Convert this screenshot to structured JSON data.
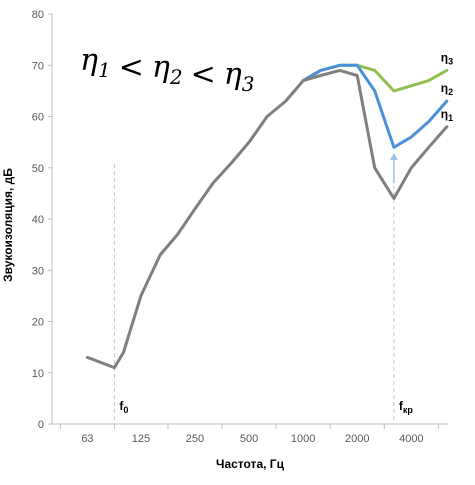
{
  "chart_data": {
    "type": "line",
    "title": "",
    "xlabel": "Частота, Гц",
    "ylabel": "Звукоизоляция, дБ",
    "ylim": [
      0,
      80
    ],
    "yticks": [
      0,
      10,
      20,
      30,
      40,
      50,
      60,
      70,
      80
    ],
    "xticks": [
      "63",
      "125",
      "250",
      "500",
      "1000",
      "2000",
      "4000"
    ],
    "x_scale": "log2",
    "xlim": [
      40,
      6400
    ],
    "grid": false,
    "annotation_formula": "η1 < η2 < η3",
    "markers": [
      {
        "label": "f",
        "sub": "0",
        "x": 89
      },
      {
        "label": "f",
        "sub": "кр",
        "x": 3200
      }
    ],
    "series": [
      {
        "name": "η3",
        "color": "#92c050",
        "x": [
          1000,
          1250,
          1600,
          2000,
          2500,
          3200,
          4000,
          5000,
          6300
        ],
        "y": [
          67,
          69,
          70,
          70,
          69,
          65,
          66,
          67,
          69
        ]
      },
      {
        "name": "η2",
        "color": "#4a90d9",
        "x": [
          1000,
          1250,
          1600,
          2000,
          2500,
          3200,
          4000,
          5000,
          6300
        ],
        "y": [
          67,
          69,
          70,
          70,
          65,
          54,
          56,
          59,
          63
        ]
      },
      {
        "name": "η1",
        "color": "#7f7f7f",
        "x": [
          63,
          89,
          100,
          125,
          160,
          200,
          250,
          315,
          400,
          500,
          630,
          800,
          1000,
          1250,
          1600,
          2000,
          2500,
          3200,
          4000,
          5000,
          6300
        ],
        "y": [
          13,
          11,
          14,
          25,
          33,
          37,
          42,
          47,
          51,
          55,
          60,
          63,
          67,
          68,
          69,
          68,
          50,
          44,
          50,
          54,
          58
        ]
      }
    ]
  }
}
